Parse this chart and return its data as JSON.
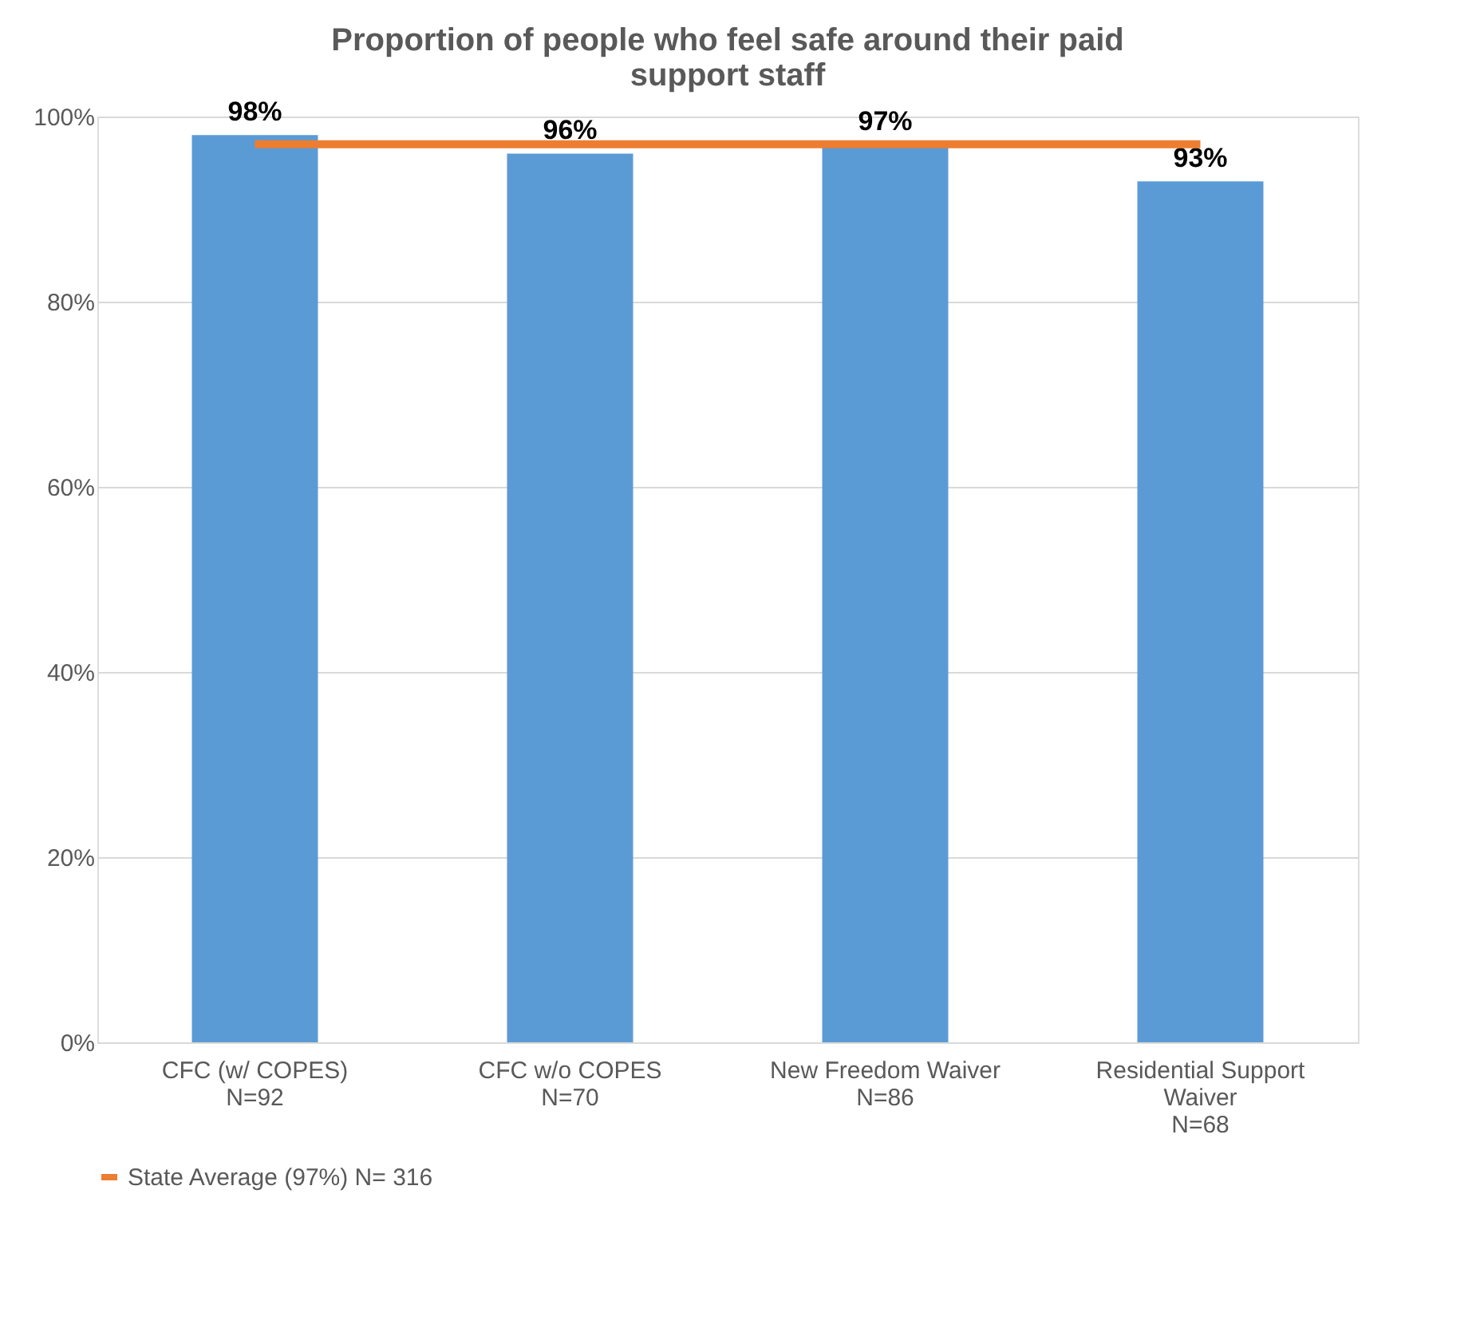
{
  "chart_data": {
    "type": "bar",
    "title": "Proportion of people who feel safe around their paid support staff",
    "categories": [
      "CFC (w/ COPES)\nN=92",
      "CFC w/o COPES\nN=70",
      "New Freedom Waiver\nN=86",
      "Residential Support\nWaiver\nN=68"
    ],
    "series": [
      {
        "color": "#5b9bd5",
        "values": [
          98,
          96,
          97,
          93
        ],
        "value_labels": [
          "98%",
          "96%",
          "97%",
          "93%"
        ]
      },
      {
        "type": "line",
        "name": "State Average (97%) N= 316",
        "color": "#ed7d31",
        "values": [
          97,
          97,
          97,
          97
        ]
      }
    ],
    "ylim": [
      0,
      100
    ],
    "yticks": [
      {
        "value": 0,
        "label": "0%"
      },
      {
        "value": 20,
        "label": "20%"
      },
      {
        "value": 40,
        "label": "40%"
      },
      {
        "value": 60,
        "label": "60%"
      },
      {
        "value": 80,
        "label": "80%"
      },
      {
        "value": 100,
        "label": "100%"
      }
    ],
    "grid": "y",
    "legend": "bottom"
  }
}
